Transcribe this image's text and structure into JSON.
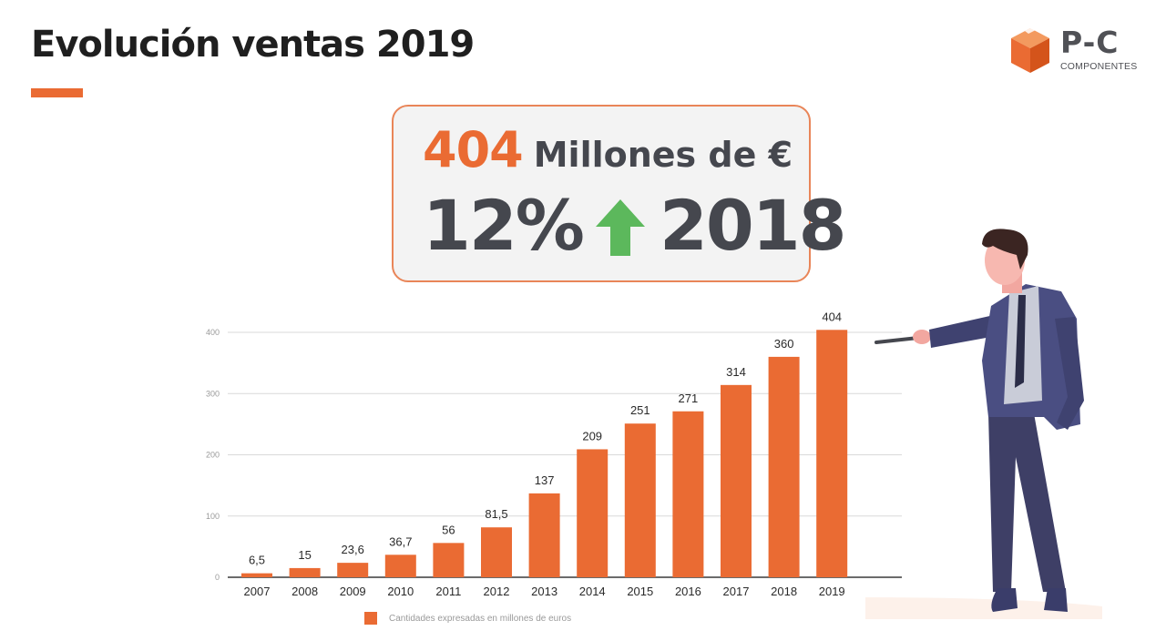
{
  "header": {
    "title": "Evolución ventas 2019"
  },
  "logo": {
    "name": "P-C",
    "subtitle": "COMPONENTES",
    "color_orange": "#ea6b33",
    "color_gray": "#505156"
  },
  "kpi": {
    "value": "404",
    "unit": "Millones de €",
    "growth": "12%",
    "direction_icon": "up-arrow-icon",
    "comparison_year": "2018"
  },
  "colors": {
    "accent": "#ea6b33",
    "text_dark": "#45474e",
    "arrow_green": "#5cb85c"
  },
  "chart_data": {
    "type": "bar",
    "categories": [
      "2007",
      "2008",
      "2009",
      "2010",
      "2011",
      "2012",
      "2013",
      "2014",
      "2015",
      "2016",
      "2017",
      "2018",
      "2019"
    ],
    "values": [
      6.5,
      15,
      23.6,
      36.7,
      56,
      81.5,
      137,
      209,
      251,
      271,
      314,
      360,
      404
    ],
    "value_labels": [
      "6,5",
      "15",
      "23,6",
      "36,7",
      "56",
      "81,5",
      "137",
      "209",
      "251",
      "271",
      "314",
      "360",
      "404"
    ],
    "ylim": [
      0,
      400
    ],
    "yticks": [
      0,
      100,
      200,
      300,
      400
    ],
    "grid": true,
    "legend": "Cantidades expresadas en millones de euros",
    "legend_position": "bottom",
    "bar_color": "#ea6b33",
    "title": "",
    "xlabel": "",
    "ylabel": ""
  }
}
